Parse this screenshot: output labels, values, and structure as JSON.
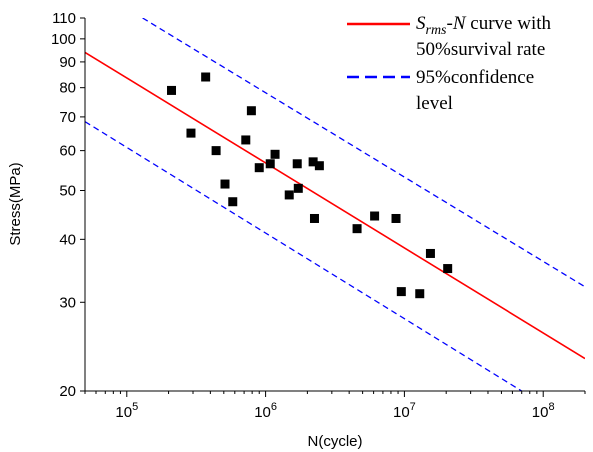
{
  "chart_data": {
    "type": "scatter",
    "title": "",
    "xlabel": "N(cycle)",
    "ylabel": "Stress(MPa)",
    "x_scale": "log",
    "y_scale": "log",
    "xlim": [
      50000,
      200000000
    ],
    "ylim": [
      20,
      110
    ],
    "x_ticks": [
      {
        "value": 100000,
        "base": "10",
        "exp": "5"
      },
      {
        "value": 1000000,
        "base": "10",
        "exp": "6"
      },
      {
        "value": 10000000,
        "base": "10",
        "exp": "7"
      },
      {
        "value": 100000000,
        "base": "10",
        "exp": "8"
      }
    ],
    "y_ticks": [
      {
        "value": 20,
        "label": "20"
      },
      {
        "value": 30,
        "label": "30"
      },
      {
        "value": 40,
        "label": "40"
      },
      {
        "value": 50,
        "label": "50"
      },
      {
        "value": 60,
        "label": "60"
      },
      {
        "value": 70,
        "label": "70"
      },
      {
        "value": 80,
        "label": "80"
      },
      {
        "value": 90,
        "label": "90"
      },
      {
        "value": 100,
        "label": "100"
      },
      {
        "value": 110,
        "label": "110"
      }
    ],
    "grid": false,
    "legend_position": "top-right",
    "series": [
      {
        "name": "",
        "kind": "scatter",
        "marker": "square",
        "color": "#000000",
        "points": [
          {
            "x": 210000,
            "y": 79
          },
          {
            "x": 290000,
            "y": 65
          },
          {
            "x": 370000,
            "y": 84
          },
          {
            "x": 440000,
            "y": 60
          },
          {
            "x": 510000,
            "y": 51.5
          },
          {
            "x": 580000,
            "y": 47.5
          },
          {
            "x": 720000,
            "y": 63
          },
          {
            "x": 790000,
            "y": 72
          },
          {
            "x": 900000,
            "y": 55.5
          },
          {
            "x": 1080000,
            "y": 56.5
          },
          {
            "x": 1170000,
            "y": 59
          },
          {
            "x": 1480000,
            "y": 49
          },
          {
            "x": 1690000,
            "y": 56.5
          },
          {
            "x": 1720000,
            "y": 50.5
          },
          {
            "x": 2200000,
            "y": 57
          },
          {
            "x": 2250000,
            "y": 44
          },
          {
            "x": 2440000,
            "y": 56
          },
          {
            "x": 4560000,
            "y": 42
          },
          {
            "x": 6100000,
            "y": 44.5
          },
          {
            "x": 8700000,
            "y": 44
          },
          {
            "x": 9500000,
            "y": 31.5
          },
          {
            "x": 12900000,
            "y": 31.2
          },
          {
            "x": 15400000,
            "y": 37.5
          },
          {
            "x": 20500000,
            "y": 35
          }
        ]
      },
      {
        "name": "Srms-N curve with 50%survival rate",
        "legend_label": {
          "italic": "S",
          "sub": "rms",
          "dash": "-",
          "italic2": "N",
          "line1_rest": " curve with",
          "line2": "50%survival rate"
        },
        "kind": "line",
        "style": "solid",
        "color": "#ff0000",
        "points": [
          {
            "x": 50000,
            "y": 94
          },
          {
            "x": 200000000,
            "y": 23.2
          }
        ]
      },
      {
        "name": "95%confidence level",
        "legend_label": {
          "line1": "95%confidence",
          "line2": "level"
        },
        "kind": "line",
        "style": "dashed",
        "color": "#0000ff",
        "points": [
          {
            "x": 130000,
            "y": 110
          },
          {
            "x": 200000000,
            "y": 32.2
          }
        ]
      },
      {
        "name": "",
        "kind": "line",
        "style": "dashed",
        "color": "#0000ff",
        "points": [
          {
            "x": 50000,
            "y": 68.5
          },
          {
            "x": 70000000,
            "y": 20
          }
        ]
      }
    ]
  }
}
